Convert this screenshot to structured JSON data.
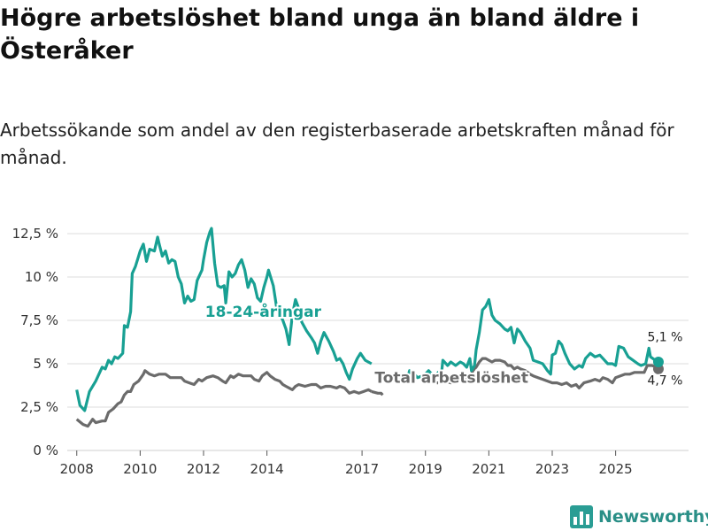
{
  "header": {
    "title": "Högre arbetslöshet bland unga än bland äldre i Österåker",
    "subtitle": "Arbetssökande som andel av den registerbaserade arbetskraften månad för månad."
  },
  "brand": {
    "name": "Newsworthy",
    "icon": "bar-chart-icon",
    "color": "#2a9d94"
  },
  "chart_data": {
    "type": "line",
    "title": "Högre arbetslöshet bland unga än bland äldre i Österåker",
    "xlabel": "",
    "ylabel": "",
    "xlim": [
      2007.7,
      2027.3
    ],
    "ylim": [
      0,
      12.5
    ],
    "yticks": [
      0,
      2.5,
      5,
      7.5,
      10,
      12.5
    ],
    "ytick_labels": [
      "0 %",
      "2,5 %",
      "5 %",
      "7,5 %",
      "10 %",
      "12,5 %"
    ],
    "xticks": [
      2008,
      2010,
      2012,
      2014,
      2017,
      2019,
      2021,
      2023,
      2025
    ],
    "xtick_labels": [
      "2008",
      "2010",
      "2012",
      "2014",
      "2017",
      "2019",
      "2021",
      "2023",
      "2025"
    ],
    "grid": true,
    "series": [
      {
        "name": "18-24-åringar",
        "color": "#18a093",
        "label": "18-24-åringar",
        "end_label": "5,1 %",
        "points": [
          [
            2008.0,
            3.5
          ],
          [
            2008.1,
            2.6
          ],
          [
            2008.25,
            2.3
          ],
          [
            2008.4,
            3.4
          ],
          [
            2008.6,
            4.0
          ],
          [
            2008.8,
            4.8
          ],
          [
            2008.9,
            4.7
          ],
          [
            2009.0,
            5.2
          ],
          [
            2009.1,
            5.0
          ],
          [
            2009.2,
            5.4
          ],
          [
            2009.3,
            5.3
          ],
          [
            2009.45,
            5.6
          ],
          [
            2009.5,
            7.2
          ],
          [
            2009.6,
            7.1
          ],
          [
            2009.7,
            8.0
          ],
          [
            2009.75,
            10.2
          ],
          [
            2009.85,
            10.6
          ],
          [
            2009.95,
            11.2
          ],
          [
            2010.0,
            11.5
          ],
          [
            2010.1,
            11.9
          ],
          [
            2010.2,
            10.9
          ],
          [
            2010.3,
            11.6
          ],
          [
            2010.45,
            11.5
          ],
          [
            2010.55,
            12.3
          ],
          [
            2010.6,
            11.9
          ],
          [
            2010.7,
            11.2
          ],
          [
            2010.8,
            11.5
          ],
          [
            2010.9,
            10.8
          ],
          [
            2011.0,
            11.0
          ],
          [
            2011.1,
            10.9
          ],
          [
            2011.2,
            10.0
          ],
          [
            2011.3,
            9.6
          ],
          [
            2011.4,
            8.5
          ],
          [
            2011.5,
            8.9
          ],
          [
            2011.6,
            8.6
          ],
          [
            2011.7,
            8.7
          ],
          [
            2011.8,
            9.8
          ],
          [
            2011.95,
            10.4
          ],
          [
            2012.0,
            11.0
          ],
          [
            2012.1,
            12.0
          ],
          [
            2012.2,
            12.6
          ],
          [
            2012.25,
            12.8
          ],
          [
            2012.35,
            10.8
          ],
          [
            2012.45,
            9.5
          ],
          [
            2012.55,
            9.4
          ],
          [
            2012.65,
            9.5
          ],
          [
            2012.7,
            8.5
          ],
          [
            2012.8,
            10.3
          ],
          [
            2012.9,
            10.0
          ],
          [
            2013.0,
            10.2
          ],
          [
            2013.1,
            10.7
          ],
          [
            2013.2,
            11.0
          ],
          [
            2013.3,
            10.4
          ],
          [
            2013.4,
            9.4
          ],
          [
            2013.5,
            9.9
          ],
          [
            2013.6,
            9.6
          ],
          [
            2013.7,
            8.8
          ],
          [
            2013.8,
            8.6
          ],
          [
            2013.9,
            9.4
          ],
          [
            2014.0,
            10.0
          ],
          [
            2014.05,
            10.4
          ],
          [
            2014.2,
            9.5
          ],
          [
            2014.3,
            8.3
          ],
          [
            2014.5,
            7.5
          ],
          [
            2014.6,
            7.0
          ],
          [
            2014.7,
            6.1
          ],
          [
            2014.8,
            7.8
          ],
          [
            2014.9,
            8.7
          ],
          [
            2015.0,
            8.2
          ],
          [
            2015.1,
            7.4
          ],
          [
            2015.25,
            6.9
          ],
          [
            2015.4,
            6.5
          ],
          [
            2015.5,
            6.2
          ],
          [
            2015.6,
            5.6
          ],
          [
            2015.7,
            6.3
          ],
          [
            2015.8,
            6.8
          ],
          [
            2015.95,
            6.3
          ],
          [
            2016.1,
            5.7
          ],
          [
            2016.2,
            5.2
          ],
          [
            2016.3,
            5.3
          ],
          [
            2016.4,
            5.0
          ],
          [
            2016.5,
            4.5
          ],
          [
            2016.6,
            4.1
          ],
          [
            2016.7,
            4.7
          ],
          [
            2016.85,
            5.3
          ],
          [
            2016.95,
            5.6
          ],
          [
            2017.1,
            5.2
          ],
          [
            2017.3,
            5.0
          ]
        ],
        "points2": [
          [
            2018.2,
            4.2
          ],
          [
            2018.4,
            4.0
          ],
          [
            2018.5,
            4.6
          ],
          [
            2018.6,
            4.5
          ],
          [
            2018.75,
            4.2
          ],
          [
            2018.9,
            4.3
          ],
          [
            2019.0,
            4.4
          ]
        ]
      },
      {
        "name": "Total arbetslöshet",
        "color": "#6b6b6b",
        "label": "Total arbetslöshet",
        "end_label": "4,7 %",
        "points": [
          [
            2008.0,
            1.8
          ],
          [
            2008.2,
            1.5
          ],
          [
            2008.35,
            1.4
          ],
          [
            2008.5,
            1.8
          ],
          [
            2008.6,
            1.6
          ],
          [
            2008.8,
            1.7
          ],
          [
            2008.9,
            1.7
          ],
          [
            2009.0,
            2.2
          ],
          [
            2009.15,
            2.4
          ],
          [
            2009.3,
            2.7
          ],
          [
            2009.4,
            2.8
          ],
          [
            2009.5,
            3.2
          ],
          [
            2009.6,
            3.4
          ],
          [
            2009.7,
            3.4
          ],
          [
            2009.8,
            3.8
          ],
          [
            2009.95,
            4.0
          ],
          [
            2010.1,
            4.4
          ],
          [
            2010.15,
            4.6
          ],
          [
            2010.3,
            4.4
          ],
          [
            2010.45,
            4.3
          ],
          [
            2010.6,
            4.4
          ],
          [
            2010.8,
            4.4
          ],
          [
            2010.95,
            4.2
          ],
          [
            2011.1,
            4.2
          ],
          [
            2011.3,
            4.2
          ],
          [
            2011.4,
            4.0
          ],
          [
            2011.55,
            3.9
          ],
          [
            2011.7,
            3.8
          ],
          [
            2011.85,
            4.1
          ],
          [
            2011.95,
            4.0
          ],
          [
            2012.1,
            4.2
          ],
          [
            2012.3,
            4.3
          ],
          [
            2012.45,
            4.2
          ],
          [
            2012.6,
            4.0
          ],
          [
            2012.7,
            3.9
          ],
          [
            2012.85,
            4.3
          ],
          [
            2012.95,
            4.2
          ],
          [
            2013.1,
            4.4
          ],
          [
            2013.25,
            4.3
          ],
          [
            2013.4,
            4.3
          ],
          [
            2013.5,
            4.3
          ],
          [
            2013.6,
            4.1
          ],
          [
            2013.75,
            4.0
          ],
          [
            2013.85,
            4.3
          ],
          [
            2014.0,
            4.5
          ],
          [
            2014.1,
            4.3
          ],
          [
            2014.25,
            4.1
          ],
          [
            2014.4,
            4.0
          ],
          [
            2014.5,
            3.8
          ],
          [
            2014.6,
            3.7
          ],
          [
            2014.7,
            3.6
          ],
          [
            2014.8,
            3.5
          ],
          [
            2014.9,
            3.7
          ],
          [
            2015.0,
            3.8
          ],
          [
            2015.2,
            3.7
          ],
          [
            2015.4,
            3.8
          ],
          [
            2015.55,
            3.8
          ],
          [
            2015.7,
            3.6
          ],
          [
            2015.85,
            3.7
          ],
          [
            2016.0,
            3.7
          ],
          [
            2016.2,
            3.6
          ],
          [
            2016.3,
            3.7
          ],
          [
            2016.45,
            3.6
          ],
          [
            2016.6,
            3.3
          ],
          [
            2016.75,
            3.4
          ],
          [
            2016.9,
            3.3
          ],
          [
            2017.05,
            3.4
          ],
          [
            2017.2,
            3.5
          ],
          [
            2017.3,
            3.4
          ]
        ],
        "points2": [
          [
            2017.3,
            3.4
          ],
          [
            2017.5,
            3.3
          ],
          [
            2017.6,
            3.3
          ],
          [
            2017.65,
            3.2
          ]
        ]
      }
    ],
    "overlap": {
      "teal": [
        [
          2019.0,
          4.4
        ],
        [
          2019.1,
          4.6
        ],
        [
          2019.2,
          4.4
        ],
        [
          2019.3,
          4.2
        ],
        [
          2019.4,
          4.5
        ],
        [
          2019.5,
          4.3
        ],
        [
          2019.55,
          5.2
        ],
        [
          2019.7,
          4.9
        ],
        [
          2019.8,
          5.1
        ],
        [
          2019.95,
          4.9
        ],
        [
          2020.1,
          5.1
        ],
        [
          2020.2,
          5.0
        ],
        [
          2020.3,
          4.8
        ],
        [
          2020.4,
          5.3
        ],
        [
          2020.45,
          4.6
        ],
        [
          2020.55,
          4.9
        ],
        [
          2020.6,
          5.8
        ],
        [
          2020.7,
          6.8
        ],
        [
          2020.8,
          8.1
        ],
        [
          2020.9,
          8.3
        ],
        [
          2021.0,
          8.7
        ],
        [
          2021.1,
          7.8
        ],
        [
          2021.2,
          7.5
        ],
        [
          2021.35,
          7.3
        ],
        [
          2021.5,
          7.0
        ],
        [
          2021.6,
          6.9
        ],
        [
          2021.7,
          7.1
        ],
        [
          2021.8,
          6.2
        ],
        [
          2021.9,
          7.0
        ],
        [
          2022.0,
          6.8
        ],
        [
          2022.15,
          6.3
        ],
        [
          2022.3,
          5.9
        ],
        [
          2022.4,
          5.2
        ],
        [
          2022.55,
          5.1
        ],
        [
          2022.7,
          5.0
        ],
        [
          2022.85,
          4.6
        ],
        [
          2022.95,
          4.4
        ],
        [
          2023.0,
          5.5
        ],
        [
          2023.1,
          5.6
        ],
        [
          2023.2,
          6.3
        ],
        [
          2023.3,
          6.1
        ],
        [
          2023.4,
          5.6
        ],
        [
          2023.55,
          5.0
        ],
        [
          2023.7,
          4.7
        ],
        [
          2023.85,
          4.9
        ],
        [
          2023.95,
          4.8
        ],
        [
          2024.05,
          5.3
        ],
        [
          2024.2,
          5.6
        ],
        [
          2024.35,
          5.4
        ],
        [
          2024.5,
          5.5
        ],
        [
          2024.6,
          5.3
        ],
        [
          2024.75,
          5.0
        ],
        [
          2024.9,
          5.0
        ],
        [
          2025.0,
          4.9
        ],
        [
          2025.1,
          6.0
        ],
        [
          2025.25,
          5.9
        ],
        [
          2025.4,
          5.4
        ],
        [
          2025.55,
          5.2
        ],
        [
          2025.7,
          5.0
        ],
        [
          2025.8,
          4.9
        ],
        [
          2025.95,
          5.0
        ],
        [
          2026.05,
          5.9
        ],
        [
          2026.1,
          5.4
        ],
        [
          2026.25,
          5.2
        ],
        [
          2026.35,
          5.1
        ]
      ],
      "gray": [
        [
          2019.0,
          4.0
        ],
        [
          2019.2,
          3.9
        ],
        [
          2019.4,
          3.9
        ],
        [
          2019.6,
          4.0
        ],
        [
          2019.8,
          3.9
        ],
        [
          2020.0,
          4.0
        ],
        [
          2020.2,
          4.1
        ],
        [
          2020.4,
          4.2
        ],
        [
          2020.5,
          4.6
        ],
        [
          2020.6,
          4.8
        ],
        [
          2020.7,
          5.1
        ],
        [
          2020.8,
          5.3
        ],
        [
          2020.9,
          5.3
        ],
        [
          2021.0,
          5.2
        ],
        [
          2021.1,
          5.1
        ],
        [
          2021.2,
          5.2
        ],
        [
          2021.35,
          5.2
        ],
        [
          2021.5,
          5.1
        ],
        [
          2021.6,
          4.9
        ],
        [
          2021.7,
          4.9
        ],
        [
          2021.8,
          4.7
        ],
        [
          2021.9,
          4.8
        ],
        [
          2022.0,
          4.7
        ],
        [
          2022.15,
          4.6
        ],
        [
          2022.3,
          4.4
        ],
        [
          2022.4,
          4.3
        ],
        [
          2022.55,
          4.2
        ],
        [
          2022.7,
          4.1
        ],
        [
          2022.85,
          4.0
        ],
        [
          2023.0,
          3.9
        ],
        [
          2023.15,
          3.9
        ],
        [
          2023.3,
          3.8
        ],
        [
          2023.45,
          3.9
        ],
        [
          2023.6,
          3.7
        ],
        [
          2023.75,
          3.8
        ],
        [
          2023.85,
          3.6
        ],
        [
          2024.0,
          3.9
        ],
        [
          2024.2,
          4.0
        ],
        [
          2024.35,
          4.1
        ],
        [
          2024.5,
          4.0
        ],
        [
          2024.6,
          4.2
        ],
        [
          2024.75,
          4.1
        ],
        [
          2024.9,
          3.9
        ],
        [
          2025.0,
          4.2
        ],
        [
          2025.15,
          4.3
        ],
        [
          2025.3,
          4.4
        ],
        [
          2025.45,
          4.4
        ],
        [
          2025.6,
          4.5
        ],
        [
          2025.75,
          4.5
        ],
        [
          2025.9,
          4.5
        ],
        [
          2026.0,
          4.9
        ],
        [
          2026.15,
          4.9
        ],
        [
          2026.3,
          4.8
        ],
        [
          2026.35,
          4.7
        ]
      ]
    },
    "annotations": [
      {
        "text": "18-24-åringar",
        "x": 2012.05,
        "y": 7.7,
        "series": "18-24-åringar"
      },
      {
        "text": "Total arbetslöshet",
        "x": 2017.4,
        "y": 3.9,
        "series": "Total arbetslöshet"
      },
      {
        "text": "5,1 %",
        "x": 2026.0,
        "y": 6.3,
        "series": "18-24-åringar"
      },
      {
        "text": "4,7 %",
        "x": 2026.0,
        "y": 3.8,
        "series": "Total arbetslöshet"
      }
    ]
  }
}
